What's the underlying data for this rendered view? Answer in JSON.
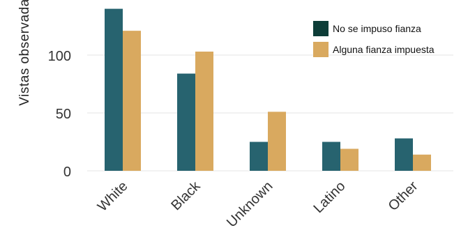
{
  "chart_data": {
    "type": "bar",
    "categories": [
      "White",
      "Black",
      "Unknown",
      "Latino",
      "Other"
    ],
    "series": [
      {
        "name": "No se impuso fianza",
        "values": [
          140,
          84,
          25,
          25,
          28
        ],
        "color": "#27636f"
      },
      {
        "name": "Alguna fianza impuesta",
        "values": [
          121,
          103,
          51,
          19,
          14
        ],
        "color": "#d9a95f"
      }
    ],
    "ylabel": "Vistas observadas",
    "yticks": [
      0,
      50,
      100
    ],
    "ylim": [
      0,
      140
    ],
    "grid": true,
    "legend_position": "top-right",
    "legend_swatch_colors": [
      "#0d3d38",
      "#d9a95f"
    ]
  }
}
